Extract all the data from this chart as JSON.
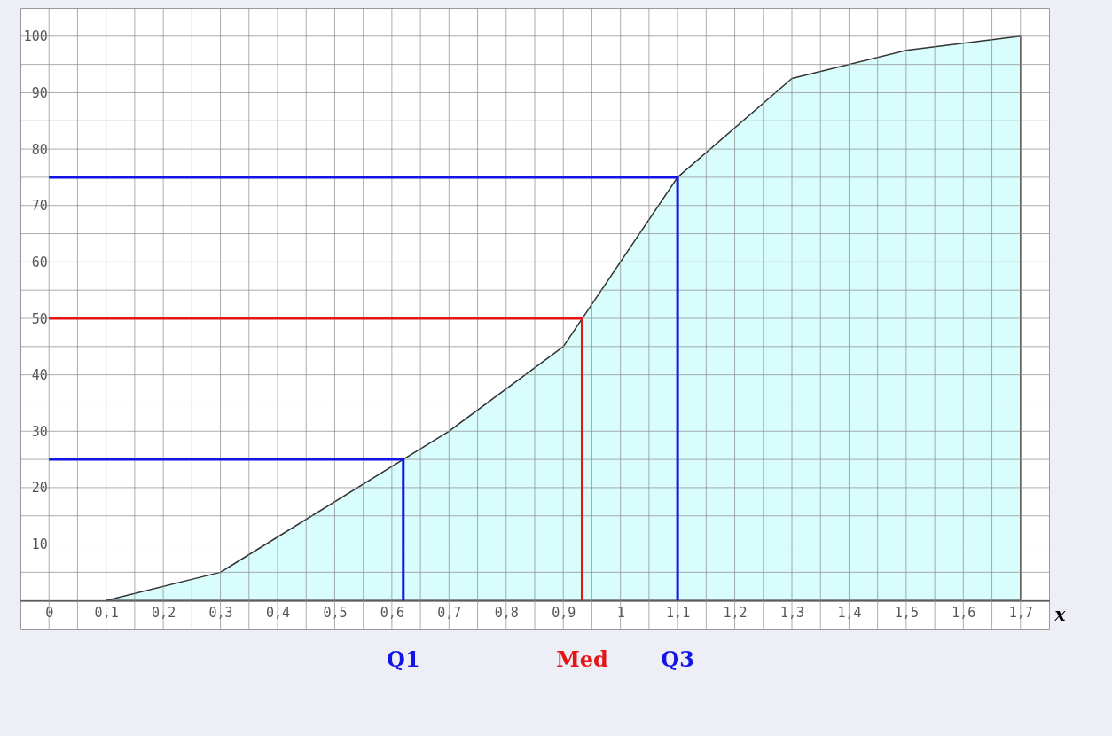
{
  "chart_data": {
    "type": "area",
    "xlabel": "x",
    "xlim": [
      -0.05,
      1.75
    ],
    "ylim": [
      -5,
      105
    ],
    "grid": true,
    "xticks": [
      {
        "value": 0,
        "label": "0"
      },
      {
        "value": 0.05,
        "label": null
      },
      {
        "value": 0.1,
        "label": "0,1"
      },
      {
        "value": 0.15,
        "label": null
      },
      {
        "value": 0.2,
        "label": "0,2"
      },
      {
        "value": 0.25,
        "label": null
      },
      {
        "value": 0.3,
        "label": "0,3"
      },
      {
        "value": 0.35,
        "label": null
      },
      {
        "value": 0.4,
        "label": "0,4"
      },
      {
        "value": 0.45,
        "label": null
      },
      {
        "value": 0.5,
        "label": "0,5"
      },
      {
        "value": 0.55,
        "label": null
      },
      {
        "value": 0.6,
        "label": "0,6"
      },
      {
        "value": 0.65,
        "label": null
      },
      {
        "value": 0.7,
        "label": "0,7"
      },
      {
        "value": 0.75,
        "label": null
      },
      {
        "value": 0.8,
        "label": "0,8"
      },
      {
        "value": 0.85,
        "label": null
      },
      {
        "value": 0.9,
        "label": "0,9"
      },
      {
        "value": 0.95,
        "label": null
      },
      {
        "value": 1,
        "label": "1"
      },
      {
        "value": 1.05,
        "label": null
      },
      {
        "value": 1.1,
        "label": "1,1"
      },
      {
        "value": 1.15,
        "label": null
      },
      {
        "value": 1.2,
        "label": "1,2"
      },
      {
        "value": 1.25,
        "label": null
      },
      {
        "value": 1.3,
        "label": "1,3"
      },
      {
        "value": 1.35,
        "label": null
      },
      {
        "value": 1.4,
        "label": "1,4"
      },
      {
        "value": 1.45,
        "label": null
      },
      {
        "value": 1.5,
        "label": "1,5"
      },
      {
        "value": 1.55,
        "label": null
      },
      {
        "value": 1.6,
        "label": "1,6"
      },
      {
        "value": 1.65,
        "label": null
      },
      {
        "value": 1.7,
        "label": "1,7"
      }
    ],
    "yticks": [
      {
        "value": 0,
        "label": null
      },
      {
        "value": 5,
        "label": null
      },
      10,
      {
        "value": 15,
        "label": null
      },
      20,
      {
        "value": 25,
        "label": null
      },
      30,
      {
        "value": 35,
        "label": null
      },
      40,
      {
        "value": 45,
        "label": null
      },
      50,
      {
        "value": 55,
        "label": null
      },
      60,
      {
        "value": 65,
        "label": null
      },
      70,
      {
        "value": 75,
        "label": null
      },
      80,
      {
        "value": 85,
        "label": null
      },
      90,
      {
        "value": 95,
        "label": null
      },
      100
    ],
    "series": [
      {
        "color": "#d9fcfc",
        "x": [
          0.1,
          0.3,
          0.7,
          0.9,
          1.1,
          1.3,
          1.5,
          1.7
        ],
        "values": [
          0,
          5,
          30,
          45,
          75,
          92.5,
          97.5,
          100
        ]
      },
      {
        "type": "line",
        "color": "#1414e6",
        "x": [
          0,
          0.62,
          0.62
        ],
        "values": [
          25,
          25,
          0
        ]
      },
      {
        "type": "line",
        "color": "#e61414",
        "x": [
          0,
          0.933,
          0.933
        ],
        "values": [
          50,
          50,
          0
        ]
      },
      {
        "type": "line",
        "color": "#1414e6",
        "x": [
          0,
          1.1,
          1.1
        ],
        "values": [
          75,
          75,
          0
        ]
      }
    ],
    "annotations": [
      {
        "text": "Q1",
        "x": 0.62,
        "y": 0
      },
      {
        "text": "Med",
        "x": 0.933,
        "y": 0
      },
      {
        "text": "Q3",
        "x": 1.1,
        "y": 0
      }
    ]
  }
}
